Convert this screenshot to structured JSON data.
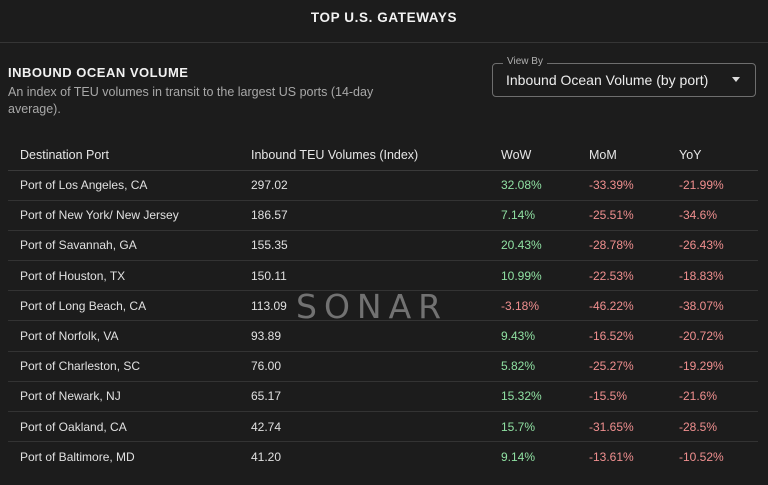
{
  "header": {
    "title": "TOP U.S. GATEWAYS"
  },
  "section": {
    "title": "INBOUND OCEAN VOLUME",
    "subtitle": "An index of TEU volumes in transit to the largest US ports (14-day average)."
  },
  "view_by": {
    "label": "View By",
    "selected": "Inbound Ocean Volume (by port)"
  },
  "table": {
    "columns": [
      "Destination Port",
      "Inbound TEU Volumes (Index)",
      "WoW",
      "MoM",
      "YoY"
    ],
    "rows": [
      {
        "port": "Port of Los Angeles, CA",
        "volume": "297.02",
        "wow": "32.08%",
        "mom": "-33.39%",
        "yoy": "-21.99%"
      },
      {
        "port": "Port of New York/ New Jersey",
        "volume": "186.57",
        "wow": "7.14%",
        "mom": "-25.51%",
        "yoy": "-34.6%"
      },
      {
        "port": "Port of Savannah, GA",
        "volume": "155.35",
        "wow": "20.43%",
        "mom": "-28.78%",
        "yoy": "-26.43%"
      },
      {
        "port": "Port of Houston, TX",
        "volume": "150.11",
        "wow": "10.99%",
        "mom": "-22.53%",
        "yoy": "-18.83%"
      },
      {
        "port": "Port of Long Beach, CA",
        "volume": "113.09",
        "wow": "-3.18%",
        "mom": "-46.22%",
        "yoy": "-38.07%"
      },
      {
        "port": "Port of Norfolk, VA",
        "volume": "93.89",
        "wow": "9.43%",
        "mom": "-16.52%",
        "yoy": "-20.72%"
      },
      {
        "port": "Port of Charleston, SC",
        "volume": "76.00",
        "wow": "5.82%",
        "mom": "-25.27%",
        "yoy": "-19.29%"
      },
      {
        "port": "Port of Newark, NJ",
        "volume": "65.17",
        "wow": "15.32%",
        "mom": "-15.5%",
        "yoy": "-21.6%"
      },
      {
        "port": "Port of Oakland, CA",
        "volume": "42.74",
        "wow": "15.7%",
        "mom": "-31.65%",
        "yoy": "-28.5%"
      },
      {
        "port": "Port of Baltimore, MD",
        "volume": "41.20",
        "wow": "9.14%",
        "mom": "-13.61%",
        "yoy": "-10.52%"
      }
    ]
  },
  "watermark": "SONAR",
  "colors": {
    "positive": "#8fe0a2",
    "negative": "#f08f8f",
    "background": "#1c1c1c"
  }
}
